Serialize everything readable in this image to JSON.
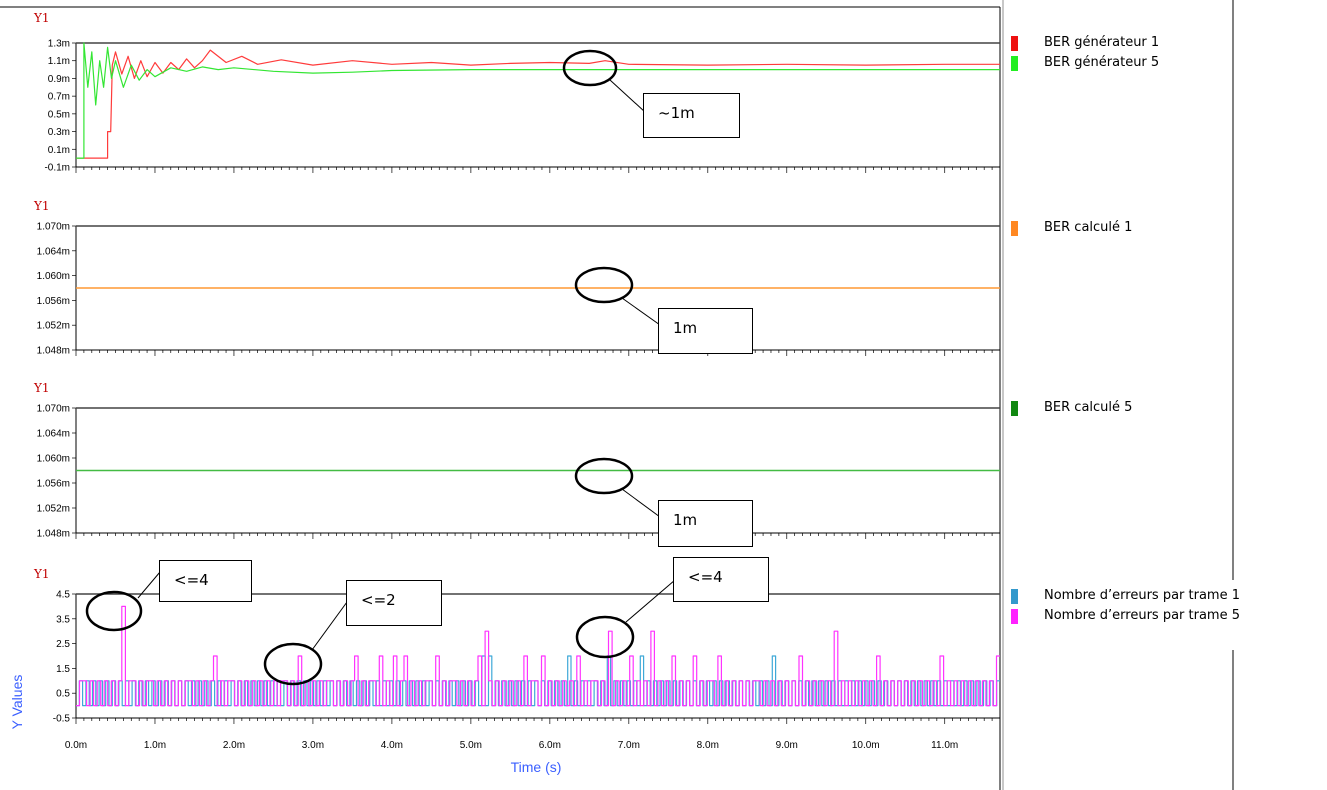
{
  "colors": {
    "ber_gen1": "#ff3b3b",
    "ber_gen5": "#33e633",
    "ber_calc1": "#ff9933",
    "ber_calc5": "#44bb44",
    "errors1": "#3fa9d8",
    "errors5": "#ff33ff",
    "axis_label": "#c00000",
    "ylabel_color": "#3a5fff"
  },
  "x_axis": {
    "label": "Time (s)",
    "ticks": [
      "0.0m",
      "1.0m",
      "2.0m",
      "3.0m",
      "4.0m",
      "5.0m",
      "6.0m",
      "7.0m",
      "8.0m",
      "9.0m",
      "10.0m",
      "11.0m"
    ],
    "range": [
      0,
      0.0117
    ]
  },
  "legends": [
    {
      "items": [
        {
          "label": "BER générateur 1",
          "color": "#ee1111"
        },
        {
          "label": "BER générateur 5",
          "color": "#22ee22"
        }
      ]
    },
    {
      "items": [
        {
          "label": "BER calculé 1",
          "color": "#ff8822"
        }
      ]
    },
    {
      "items": [
        {
          "label": "BER calculé 5",
          "color": "#118811"
        }
      ]
    },
    {
      "items": [
        {
          "label": "Nombre d’erreurs par trame 1",
          "color": "#3399cc"
        },
        {
          "label": "Nombre d’erreurs par trame 5",
          "color": "#ff22ff"
        }
      ]
    }
  ],
  "callouts": [
    "~1m",
    "1m",
    "1m",
    "<=4",
    "<=2",
    "<=4"
  ],
  "chart_data": [
    {
      "type": "line",
      "panel_label": "Y1",
      "yticks": [
        "1.3m",
        "1.1m",
        "0.9m",
        "0.7m",
        "0.5m",
        "0.3m",
        "0.1m",
        "-0.1m"
      ],
      "ylim": [
        -0.0001,
        0.0013
      ],
      "series": [
        {
          "name": "BER générateur 1",
          "points": [
            [
              0,
              0
            ],
            [
              0.0004,
              0
            ],
            [
              0.0004,
              0.0003
            ],
            [
              0.00044,
              0.0003
            ],
            [
              0.00046,
              0.00105
            ],
            [
              0.0005,
              0.0012
            ],
            [
              0.00058,
              0.00095
            ],
            [
              0.00066,
              0.00115
            ],
            [
              0.00074,
              0.0009
            ],
            [
              0.00082,
              0.0011
            ],
            [
              0.0009,
              0.00092
            ],
            [
              0.001,
              0.00108
            ],
            [
              0.0011,
              0.00096
            ],
            [
              0.0012,
              0.00108
            ],
            [
              0.0013,
              0.001
            ],
            [
              0.0014,
              0.00112
            ],
            [
              0.0015,
              0.00102
            ],
            [
              0.0016,
              0.0011
            ],
            [
              0.0017,
              0.00122
            ],
            [
              0.0019,
              0.00108
            ],
            [
              0.0021,
              0.00115
            ],
            [
              0.0023,
              0.00106
            ],
            [
              0.0026,
              0.00111
            ],
            [
              0.003,
              0.00105
            ],
            [
              0.0035,
              0.0011
            ],
            [
              0.004,
              0.00106
            ],
            [
              0.0045,
              0.00108
            ],
            [
              0.005,
              0.00105
            ],
            [
              0.0055,
              0.00107
            ],
            [
              0.006,
              0.00108
            ],
            [
              0.0065,
              0.00107
            ],
            [
              0.0067,
              0.0011
            ],
            [
              0.007,
              0.00106
            ],
            [
              0.008,
              0.00105
            ],
            [
              0.009,
              0.00106
            ],
            [
              0.01,
              0.00105
            ],
            [
              0.011,
              0.00106
            ],
            [
              0.0117,
              0.00106
            ]
          ]
        },
        {
          "name": "BER générateur 5",
          "points": [
            [
              0,
              0
            ],
            [
              0.0001,
              0
            ],
            [
              0.0001,
              0.0013
            ],
            [
              0.00015,
              0.0008
            ],
            [
              0.0002,
              0.0012
            ],
            [
              0.00025,
              0.0006
            ],
            [
              0.0003,
              0.0011
            ],
            [
              0.00035,
              0.0008
            ],
            [
              0.0004,
              0.00125
            ],
            [
              0.00045,
              0.0009
            ],
            [
              0.0005,
              0.0011
            ],
            [
              0.0006,
              0.0008
            ],
            [
              0.0007,
              0.00105
            ],
            [
              0.0008,
              0.00088
            ],
            [
              0.0009,
              0.001
            ],
            [
              0.001,
              0.00092
            ],
            [
              0.0012,
              0.00102
            ],
            [
              0.0014,
              0.00098
            ],
            [
              0.0016,
              0.00103
            ],
            [
              0.0018,
              0.001
            ],
            [
              0.002,
              0.00102
            ],
            [
              0.0025,
              0.00098
            ],
            [
              0.003,
              0.00096
            ],
            [
              0.0035,
              0.00097
            ],
            [
              0.004,
              0.00099
            ],
            [
              0.005,
              0.001
            ],
            [
              0.006,
              0.001
            ],
            [
              0.007,
              0.001
            ],
            [
              0.008,
              0.001
            ],
            [
              0.009,
              0.001
            ],
            [
              0.01,
              0.001
            ],
            [
              0.011,
              0.001
            ],
            [
              0.0117,
              0.001
            ]
          ]
        }
      ]
    },
    {
      "type": "line",
      "panel_label": "Y1",
      "yticks": [
        "1.070m",
        "1.064m",
        "1.060m",
        "1.056m",
        "1.052m",
        "1.048m"
      ],
      "ylim": [
        0.001048,
        0.00107
      ],
      "series": [
        {
          "name": "BER calculé 1",
          "points": [
            [
              0,
              0.001059
            ],
            [
              0.0117,
              0.001059
            ]
          ]
        }
      ]
    },
    {
      "type": "line",
      "panel_label": "Y1",
      "yticks": [
        "1.070m",
        "1.064m",
        "1.060m",
        "1.056m",
        "1.052m",
        "1.048m"
      ],
      "ylim": [
        0.001048,
        0.00107
      ],
      "series": [
        {
          "name": "BER calculé 5",
          "points": [
            [
              0,
              0.001059
            ],
            [
              0.0117,
              0.001059
            ]
          ]
        }
      ]
    },
    {
      "type": "line",
      "panel_label": "Y1",
      "ylabel": "Y Values",
      "yticks": [
        "4.5",
        "3.5",
        "2.5",
        "1.5",
        "0.5",
        "-0.5"
      ],
      "ylim": [
        -0.5,
        4.5
      ],
      "series": [
        {
          "name": "Nombre d’erreurs par trame 1",
          "values": [
            0,
            1,
            0,
            1,
            0,
            1,
            0,
            1,
            0,
            1,
            0,
            1,
            0,
            1,
            0,
            1,
            0,
            1,
            0,
            1,
            0,
            1,
            0,
            1,
            0,
            1,
            0,
            1,
            0,
            1,
            0,
            1,
            0,
            1,
            0,
            1,
            0,
            1,
            0,
            1,
            0,
            1,
            0,
            1,
            0,
            1,
            0,
            1,
            0,
            1,
            0,
            1,
            0,
            1,
            0,
            1,
            0,
            1,
            0,
            1,
            0,
            1,
            0,
            1,
            0,
            1,
            0,
            1,
            0,
            1,
            0,
            1,
            0,
            1,
            0,
            1,
            0,
            1,
            0,
            1,
            0,
            1,
            0,
            1,
            0,
            1,
            0,
            1,
            0,
            1,
            0,
            1,
            0,
            1,
            0,
            1,
            0,
            1,
            0,
            1,
            0,
            1,
            0,
            1,
            0,
            1,
            0,
            1,
            0,
            1,
            0,
            1,
            0,
            1,
            0,
            1,
            0,
            1,
            0,
            1,
            0,
            1,
            0,
            2,
            0,
            2,
            0,
            1,
            0,
            1,
            0,
            1,
            0,
            1,
            0,
            1,
            0,
            1,
            0,
            1,
            0,
            1,
            0,
            1,
            0,
            1,
            0,
            1,
            0,
            2,
            0,
            1,
            0,
            1,
            0,
            1,
            0,
            1,
            0,
            1,
            0,
            2,
            0,
            1,
            0,
            1,
            0,
            1,
            0,
            1,
            0,
            2,
            0,
            1,
            0,
            1,
            0,
            1,
            0,
            1,
            0,
            1,
            0,
            1,
            0,
            1,
            0,
            1,
            0,
            1,
            0,
            1,
            0,
            1,
            0,
            1,
            0,
            1,
            0,
            1,
            0,
            1,
            0,
            1,
            0,
            1,
            0,
            1,
            0,
            1,
            0,
            2,
            0,
            1,
            0,
            1,
            0,
            1,
            0,
            1,
            0,
            1,
            0,
            1,
            0,
            1,
            0,
            1,
            0,
            1,
            0,
            1,
            0,
            1,
            0,
            1,
            0,
            1,
            0,
            1,
            0,
            1,
            0,
            1,
            0,
            1,
            0,
            1,
            0,
            1,
            0,
            1,
            0,
            1,
            0,
            1,
            0,
            1,
            0,
            1,
            0,
            1,
            0,
            1,
            0,
            1,
            0,
            1,
            0,
            1,
            0,
            1,
            0,
            1,
            0,
            1,
            0,
            1,
            0,
            1
          ]
        },
        {
          "name": "Nombre d’erreurs par trame 5",
          "values": [
            0,
            1,
            1,
            0,
            1,
            0,
            1,
            0,
            1,
            0,
            1,
            0,
            1,
            4,
            0,
            1,
            1,
            0,
            1,
            0,
            1,
            1,
            0,
            1,
            0,
            1,
            0,
            1,
            0,
            1,
            0,
            1,
            1,
            0,
            1,
            0,
            1,
            0,
            1,
            2,
            0,
            1,
            0,
            1,
            1,
            0,
            1,
            0,
            1,
            0,
            1,
            0,
            1,
            0,
            1,
            0,
            1,
            0,
            1,
            1,
            0,
            1,
            0,
            2,
            0,
            1,
            0,
            1,
            0,
            1,
            0,
            1,
            1,
            0,
            1,
            0,
            1,
            0,
            1,
            2,
            0,
            1,
            0,
            1,
            1,
            0,
            2,
            0,
            1,
            0,
            2,
            0,
            1,
            2,
            0,
            1,
            0,
            1,
            0,
            1,
            1,
            0,
            2,
            0,
            1,
            0,
            1,
            1,
            0,
            1,
            0,
            1,
            0,
            1,
            2,
            0,
            3,
            1,
            0,
            1,
            0,
            1,
            0,
            1,
            0,
            1,
            0,
            2,
            0,
            1,
            1,
            0,
            2,
            0,
            1,
            0,
            1,
            0,
            1,
            0,
            1,
            0,
            2,
            0,
            1,
            0,
            1,
            1,
            0,
            1,
            0,
            3,
            0,
            1,
            0,
            1,
            0,
            2,
            0,
            1,
            0,
            1,
            0,
            3,
            0,
            1,
            0,
            1,
            0,
            2,
            0,
            1,
            0,
            1,
            0,
            2,
            0,
            1,
            0,
            1,
            1,
            0,
            2,
            0,
            1,
            0,
            1,
            0,
            1,
            0,
            1,
            0,
            1,
            1,
            0,
            1,
            0,
            1,
            0,
            1,
            0,
            1,
            0,
            1,
            0,
            2,
            0,
            1,
            0,
            1,
            0,
            1,
            0,
            1,
            0,
            3,
            0,
            1,
            0,
            1,
            0,
            1,
            0,
            1,
            0,
            1,
            0,
            2,
            0,
            1,
            0,
            1,
            0,
            1,
            0,
            1,
            0,
            1,
            0,
            1,
            0,
            1,
            0,
            1,
            0,
            2,
            0,
            1,
            0,
            1,
            0,
            1,
            0,
            1,
            0,
            1,
            0,
            1,
            0,
            1,
            0,
            2
          ]
        }
      ]
    }
  ]
}
